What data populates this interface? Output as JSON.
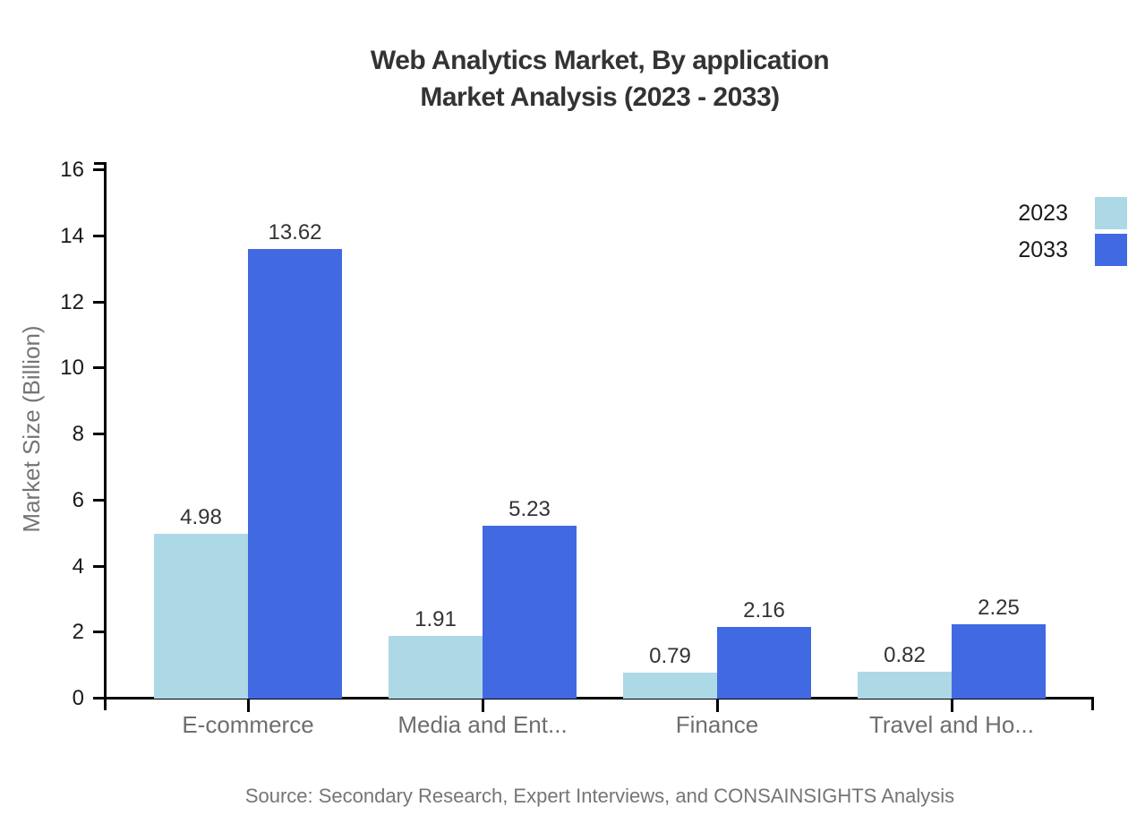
{
  "title": {
    "line1": "Web Analytics Market, By application",
    "line2": "Market Analysis (2023 - 2033)"
  },
  "source": "Source: Secondary Research, Expert Interviews, and CONSAINSIGHTS Analysis",
  "chart_data": {
    "type": "bar",
    "title": "Web Analytics Market, By application Market Analysis (2023 - 2033)",
    "xlabel": "",
    "ylabel": "Market Size (Billion)",
    "categories": [
      "E-commerce",
      "Media and Ent...",
      "Finance",
      "Travel and Ho..."
    ],
    "series": [
      {
        "name": "2023",
        "color": "#ADD8E6",
        "values": [
          4.98,
          1.91,
          0.79,
          0.82
        ]
      },
      {
        "name": "2033",
        "color": "#4169E1",
        "values": [
          13.62,
          5.23,
          2.16,
          2.25
        ]
      }
    ],
    "ylim": [
      0,
      16
    ],
    "y_ticks": [
      0,
      2,
      4,
      6,
      8,
      10,
      12,
      14,
      16
    ],
    "legend_position": "right",
    "grid": false
  },
  "colors": {
    "background": "#ffffff",
    "axis": "#000000",
    "title_text": "#333333",
    "muted_text": "#757575",
    "value_text": "#333333",
    "series_2023": "#ADD8E6",
    "series_2033": "#4169E1"
  }
}
